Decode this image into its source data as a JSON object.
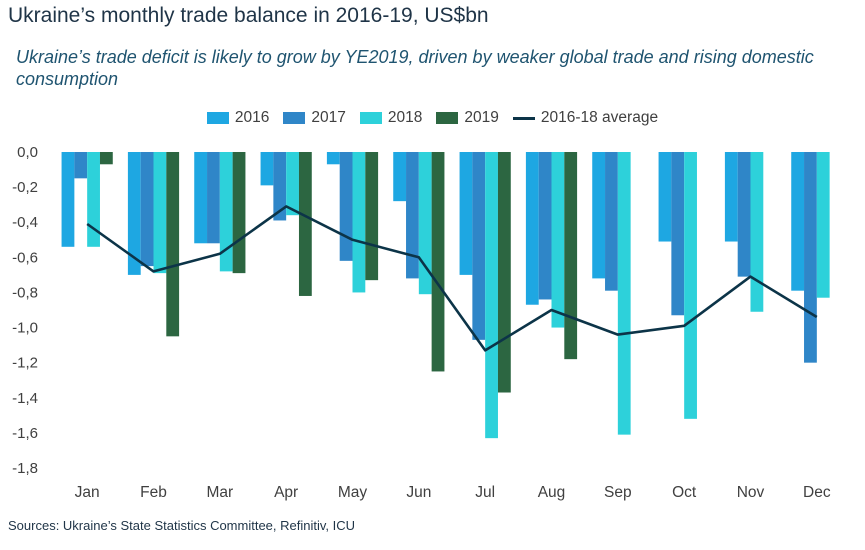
{
  "title": "Ukraine’s monthly trade balance in 2016-19, US$bn",
  "subtitle": "Ukraine’s trade deficit is likely to grow by YE2019, driven by weaker global trade and rising domestic consumption",
  "source": "Sources: Ukraine’s State Statistics Committee, Refinitiv, ICU",
  "chart_data": {
    "type": "bar",
    "categories": [
      "Jan",
      "Feb",
      "Mar",
      "Apr",
      "May",
      "Jun",
      "Jul",
      "Aug",
      "Sep",
      "Oct",
      "Nov",
      "Dec"
    ],
    "ylim": [
      -1.8,
      0.0
    ],
    "yticks": [
      0.0,
      -0.2,
      -0.4,
      -0.6,
      -0.8,
      -1.0,
      -1.2,
      -1.4,
      -1.6,
      -1.8
    ],
    "ytick_labels": [
      "0,0",
      "-0,2",
      "-0,4",
      "-0,6",
      "-0,8",
      "-1,0",
      "-1,2",
      "-1,4",
      "-1,6",
      "-1,8"
    ],
    "grid": false,
    "legend_position": "top-center",
    "series": [
      {
        "name": "2016",
        "kind": "bar",
        "color": "#1ea7e2",
        "values": [
          -0.54,
          -0.7,
          -0.52,
          -0.19,
          -0.07,
          -0.28,
          -0.7,
          -0.87,
          -0.72,
          -0.51,
          -0.51,
          -0.79
        ]
      },
      {
        "name": "2017",
        "kind": "bar",
        "color": "#2f86c8",
        "values": [
          -0.15,
          -0.65,
          -0.52,
          -0.39,
          -0.62,
          -0.72,
          -1.07,
          -0.84,
          -0.79,
          -0.93,
          -0.71,
          -1.2
        ]
      },
      {
        "name": "2018",
        "kind": "bar",
        "color": "#2dd1da",
        "values": [
          -0.54,
          -0.69,
          -0.68,
          -0.36,
          -0.8,
          -0.81,
          -1.63,
          -1.0,
          -1.61,
          -1.52,
          -0.91,
          -0.83
        ]
      },
      {
        "name": "2019",
        "kind": "bar",
        "color": "#2c6641",
        "values": [
          -0.07,
          -1.05,
          -0.69,
          -0.82,
          -0.73,
          -1.25,
          -1.37,
          -1.18,
          null,
          null,
          null,
          null
        ]
      },
      {
        "name": "2016-18 average",
        "kind": "line",
        "color": "#0c3448",
        "values": [
          -0.41,
          -0.68,
          -0.58,
          -0.31,
          -0.5,
          -0.6,
          -1.13,
          -0.9,
          -1.04,
          -0.99,
          -0.71,
          -0.94
        ]
      }
    ]
  }
}
